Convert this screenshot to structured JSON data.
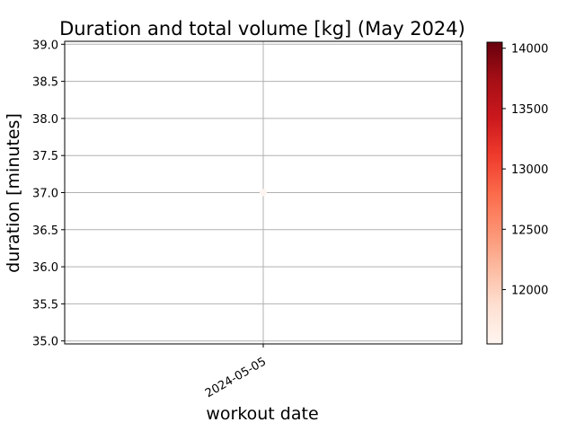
{
  "chart_data": {
    "type": "scatter",
    "title": "Duration and total volume [kg] (May 2024)",
    "xlabel": "workout date",
    "ylabel": "duration [minutes]",
    "x_ticks": [
      "2024-05-05"
    ],
    "y_ticks": [
      35.0,
      35.5,
      36.0,
      36.5,
      37.0,
      37.5,
      38.0,
      38.5,
      39.0
    ],
    "ylim": [
      35.0,
      39.0
    ],
    "grid": true,
    "points": [
      {
        "x": "2024-05-05",
        "y": 37.0,
        "value": 11550
      }
    ],
    "colorbar": {
      "colormap": "Reds",
      "ticks": [
        12000,
        12500,
        13000,
        13500,
        14000
      ],
      "range": [
        11550,
        14050
      ]
    }
  }
}
